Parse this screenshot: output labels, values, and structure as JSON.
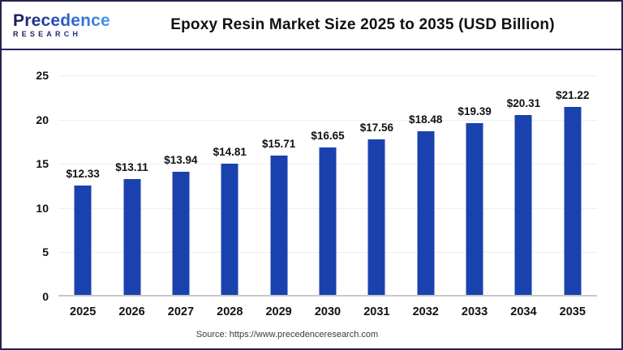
{
  "logo": {
    "brand": "Precedence",
    "sub": "RESEARCH"
  },
  "header": {
    "title": "Epoxy Resin Market Size 2025 to 2035 (USD Billion)"
  },
  "footer": {
    "source": "Source: https://www.precedenceresearch.com"
  },
  "colors": {
    "bar": "#1a42ae",
    "grid": "#efefef",
    "axis_line": "#c9c9c9",
    "header_rule": "#24245c",
    "frame_border": "#23234f"
  },
  "chart_data": {
    "type": "bar",
    "title": "Epoxy Resin Market Size 2025 to 2035 (USD Billion)",
    "categories": [
      "2025",
      "2026",
      "2027",
      "2028",
      "2029",
      "2030",
      "2031",
      "2032",
      "2033",
      "2034",
      "2035"
    ],
    "values": [
      12.33,
      13.11,
      13.94,
      14.81,
      15.71,
      16.65,
      17.56,
      18.48,
      19.39,
      20.31,
      21.22
    ],
    "value_labels": [
      "$12.33",
      "$13.11",
      "$13.94",
      "$14.81",
      "$15.71",
      "$16.65",
      "$17.56",
      "$18.48",
      "$19.39",
      "$20.31",
      "$21.22"
    ],
    "unit": "USD Billion",
    "xlabel": "",
    "ylabel": "",
    "ylim": [
      0,
      25
    ],
    "yticks": [
      0,
      5,
      10,
      15,
      20,
      25
    ],
    "grid": true,
    "legend": false,
    "bar_color": "#1a42ae"
  }
}
